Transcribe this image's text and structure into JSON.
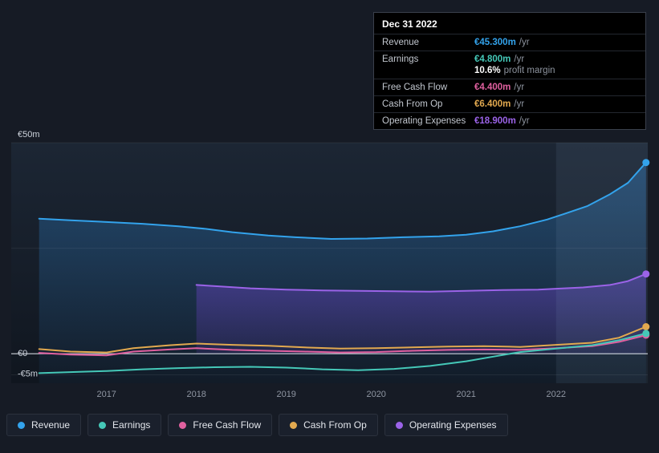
{
  "tooltip": {
    "date": "Dec 31 2022",
    "rows": [
      {
        "label": "Revenue",
        "value": "€45.300m",
        "suffix": "/yr",
        "color": "#33a3ec"
      },
      {
        "label": "Earnings",
        "value": "€4.800m",
        "suffix": "/yr",
        "color": "#45c8b8"
      },
      {
        "label": "Free Cash Flow",
        "value": "€4.400m",
        "suffix": "/yr",
        "color": "#e0609f"
      },
      {
        "label": "Cash From Op",
        "value": "€6.400m",
        "suffix": "/yr",
        "color": "#e2a94f"
      },
      {
        "label": "Operating Expenses",
        "value": "€18.900m",
        "suffix": "/yr",
        "color": "#9b63e8"
      }
    ],
    "profit_margin": {
      "value": "10.6%",
      "label": "profit margin"
    }
  },
  "legend": [
    {
      "label": "Revenue",
      "color": "#33a3ec"
    },
    {
      "label": "Earnings",
      "color": "#45c8b8"
    },
    {
      "label": "Free Cash Flow",
      "color": "#e0609f"
    },
    {
      "label": "Cash From Op",
      "color": "#e2a94f"
    },
    {
      "label": "Operating Expenses",
      "color": "#9b63e8"
    }
  ],
  "chart_data": {
    "type": "line",
    "currency": "EUR",
    "xlim": [
      2015.94,
      2023.02
    ],
    "ylim": [
      -7,
      50
    ],
    "highlight_x": [
      2022,
      2023.02
    ],
    "y_gridlines": [
      50,
      25,
      0,
      -5
    ],
    "y_ticks": [
      {
        "label": "€50m",
        "value": 50,
        "dy": -7
      },
      {
        "label": "€0",
        "value": 0,
        "dy": 3
      },
      {
        "label": "-€5m",
        "value": -5,
        "dy": 2
      }
    ],
    "x_ticks": [
      {
        "label": "2017",
        "value": 2017
      },
      {
        "label": "2018",
        "value": 2018
      },
      {
        "label": "2019",
        "value": 2019
      },
      {
        "label": "2020",
        "value": 2020
      },
      {
        "label": "2021",
        "value": 2021
      },
      {
        "label": "2022",
        "value": 2022
      }
    ],
    "series": [
      {
        "key": "revenue",
        "name": "Revenue",
        "color": "#33a3ec",
        "fill": "to-bottom",
        "points": [
          [
            2016.25,
            32.0
          ],
          [
            2016.6,
            31.6
          ],
          [
            2017.0,
            31.2
          ],
          [
            2017.4,
            30.8
          ],
          [
            2017.8,
            30.2
          ],
          [
            2018.1,
            29.6
          ],
          [
            2018.4,
            28.8
          ],
          [
            2018.8,
            28.0
          ],
          [
            2019.1,
            27.6
          ],
          [
            2019.5,
            27.2
          ],
          [
            2019.9,
            27.3
          ],
          [
            2020.3,
            27.6
          ],
          [
            2020.7,
            27.8
          ],
          [
            2021.0,
            28.2
          ],
          [
            2021.3,
            29.0
          ],
          [
            2021.6,
            30.2
          ],
          [
            2021.9,
            31.8
          ],
          [
            2022.1,
            33.2
          ],
          [
            2022.35,
            35.0
          ],
          [
            2022.6,
            37.8
          ],
          [
            2022.8,
            40.5
          ],
          [
            2023.0,
            45.3
          ]
        ]
      },
      {
        "key": "operating-expenses",
        "name": "Operating Expenses",
        "color": "#9b63e8",
        "fill": "to-zero",
        "points": [
          [
            2018.0,
            16.3
          ],
          [
            2018.3,
            15.9
          ],
          [
            2018.6,
            15.5
          ],
          [
            2019.0,
            15.2
          ],
          [
            2019.4,
            15.0
          ],
          [
            2019.8,
            14.9
          ],
          [
            2020.2,
            14.8
          ],
          [
            2020.6,
            14.7
          ],
          [
            2021.0,
            14.9
          ],
          [
            2021.4,
            15.1
          ],
          [
            2021.8,
            15.2
          ],
          [
            2022.0,
            15.4
          ],
          [
            2022.3,
            15.7
          ],
          [
            2022.6,
            16.3
          ],
          [
            2022.8,
            17.2
          ],
          [
            2023.0,
            18.9
          ]
        ]
      },
      {
        "key": "cash-from-op",
        "name": "Cash From Op",
        "color": "#e2a94f",
        "fill": "none",
        "points": [
          [
            2016.25,
            1.1
          ],
          [
            2016.6,
            0.5
          ],
          [
            2017.0,
            0.3
          ],
          [
            2017.3,
            1.3
          ],
          [
            2017.7,
            2.0
          ],
          [
            2018.0,
            2.4
          ],
          [
            2018.4,
            2.1
          ],
          [
            2018.8,
            1.9
          ],
          [
            2019.2,
            1.5
          ],
          [
            2019.6,
            1.2
          ],
          [
            2020.0,
            1.3
          ],
          [
            2020.4,
            1.5
          ],
          [
            2020.8,
            1.7
          ],
          [
            2021.2,
            1.8
          ],
          [
            2021.6,
            1.6
          ],
          [
            2022.0,
            2.1
          ],
          [
            2022.4,
            2.6
          ],
          [
            2022.7,
            3.8
          ],
          [
            2023.0,
            6.4
          ]
        ]
      },
      {
        "key": "free-cash-flow",
        "name": "Free Cash Flow",
        "color": "#e0609f",
        "fill": "none",
        "points": [
          [
            2016.25,
            0.2
          ],
          [
            2016.6,
            -0.2
          ],
          [
            2017.0,
            -0.4
          ],
          [
            2017.3,
            0.5
          ],
          [
            2017.7,
            1.0
          ],
          [
            2018.0,
            1.3
          ],
          [
            2018.4,
            0.9
          ],
          [
            2018.8,
            0.7
          ],
          [
            2019.2,
            0.5
          ],
          [
            2019.6,
            0.3
          ],
          [
            2020.0,
            0.4
          ],
          [
            2020.4,
            0.7
          ],
          [
            2020.8,
            0.9
          ],
          [
            2021.2,
            1.0
          ],
          [
            2021.6,
            0.9
          ],
          [
            2022.0,
            1.3
          ],
          [
            2022.4,
            1.8
          ],
          [
            2022.7,
            2.8
          ],
          [
            2023.0,
            4.4
          ]
        ]
      },
      {
        "key": "earnings",
        "name": "Earnings",
        "color": "#45c8b8",
        "fill": "none",
        "points": [
          [
            2016.25,
            -4.6
          ],
          [
            2016.7,
            -4.3
          ],
          [
            2017.0,
            -4.1
          ],
          [
            2017.4,
            -3.7
          ],
          [
            2017.8,
            -3.4
          ],
          [
            2018.2,
            -3.2
          ],
          [
            2018.6,
            -3.1
          ],
          [
            2019.0,
            -3.3
          ],
          [
            2019.4,
            -3.7
          ],
          [
            2019.8,
            -3.9
          ],
          [
            2020.2,
            -3.6
          ],
          [
            2020.6,
            -2.9
          ],
          [
            2021.0,
            -1.8
          ],
          [
            2021.3,
            -0.7
          ],
          [
            2021.6,
            0.4
          ],
          [
            2022.0,
            1.2
          ],
          [
            2022.4,
            2.0
          ],
          [
            2022.7,
            3.2
          ],
          [
            2023.0,
            4.8
          ]
        ]
      }
    ]
  }
}
